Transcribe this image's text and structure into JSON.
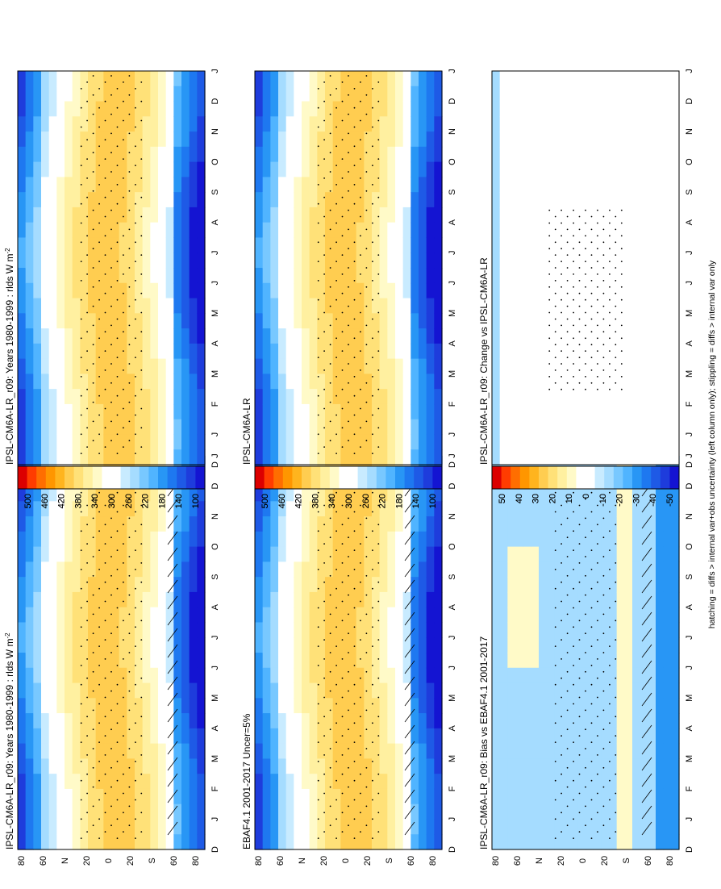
{
  "figure": {
    "footer": "hatching = diffs > internal var+obs uncertainty (left column only); stippling = diffs > internal var only"
  },
  "chart_data": [
    {
      "type": "heatmap",
      "id": "p_left_top",
      "title_main": "IPSL-CM6A-LR_r09: Years 1980-1999 : rlds W m",
      "title_sup": "-2",
      "x_ticks": [
        "D",
        "J",
        "F",
        "M",
        "A",
        "M",
        "J",
        "J",
        "A",
        "S",
        "O",
        "N",
        "D",
        "J"
      ],
      "y_ticks": [
        "80",
        "60",
        "N",
        "20",
        "0",
        "20",
        "S",
        "60",
        "80"
      ],
      "colorbar_labels": [
        "500",
        "460",
        "420",
        "380",
        "340",
        "300",
        "260",
        "220",
        "180",
        "140",
        "100"
      ],
      "field": "absolute",
      "hatching": true,
      "stippling": true
    },
    {
      "type": "heatmap",
      "id": "p_right_top",
      "title_main": "IPSL-CM6A-LR_r09: Years 1980-1999 : rlds W m",
      "title_sup": "-2",
      "x_ticks": [
        "D",
        "J",
        "F",
        "M",
        "A",
        "M",
        "J",
        "J",
        "A",
        "S",
        "O",
        "N",
        "D",
        "J"
      ],
      "y_ticks": [
        "80",
        "60",
        "N",
        "20",
        "0",
        "20",
        "S",
        "60",
        "80"
      ],
      "colorbar_labels": [
        "500",
        "460",
        "420",
        "380",
        "340",
        "300",
        "260",
        "220",
        "180",
        "140",
        "100"
      ],
      "field": "absolute",
      "hatching": false,
      "stippling": true
    },
    {
      "type": "heatmap",
      "id": "p_left_mid",
      "title_main": "EBAF4.1 2001-2017 Uncer=5%",
      "title_sup": "",
      "x_ticks": [
        "D",
        "J",
        "F",
        "M",
        "A",
        "M",
        "J",
        "J",
        "A",
        "S",
        "O",
        "N",
        "D",
        "J"
      ],
      "y_ticks": [
        "80",
        "60",
        "N",
        "20",
        "0",
        "20",
        "S",
        "60",
        "80"
      ],
      "colorbar_labels": [
        "500",
        "460",
        "420",
        "380",
        "340",
        "300",
        "260",
        "220",
        "180",
        "140",
        "100"
      ],
      "field": "absolute",
      "hatching": true,
      "stippling": true
    },
    {
      "type": "heatmap",
      "id": "p_right_mid",
      "title_main": "IPSL-CM6A-LR",
      "title_sup": "",
      "x_ticks": [
        "D",
        "J",
        "F",
        "M",
        "A",
        "M",
        "J",
        "J",
        "A",
        "S",
        "O",
        "N",
        "D",
        "J"
      ],
      "y_ticks": [
        "80",
        "60",
        "N",
        "20",
        "0",
        "20",
        "S",
        "60",
        "80"
      ],
      "colorbar_labels": [
        "500",
        "460",
        "420",
        "380",
        "340",
        "300",
        "260",
        "220",
        "180",
        "140",
        "100"
      ],
      "field": "absolute",
      "hatching": false,
      "stippling": true
    },
    {
      "type": "heatmap",
      "id": "p_left_bot",
      "title_main": "IPSL-CM6A-LR_r09: Bias vs EBAF4.1 2001-2017",
      "title_sup": "",
      "x_ticks": [
        "D",
        "J",
        "F",
        "M",
        "A",
        "M",
        "J",
        "J",
        "A",
        "S",
        "O",
        "N",
        "D",
        "J"
      ],
      "y_ticks": [
        "80",
        "60",
        "N",
        "20",
        "0",
        "20",
        "S",
        "60",
        "80"
      ],
      "colorbar_labels": [
        "50",
        "40",
        "30",
        "20",
        "10",
        "0",
        "-10",
        "-20",
        "-30",
        "-40",
        "-50"
      ],
      "field": "bias",
      "hatching": true,
      "stippling": true
    },
    {
      "type": "heatmap",
      "id": "p_right_bot",
      "title_main": "IPSL-CM6A-LR_r09: Change vs IPSL-CM6A-LR",
      "title_sup": "",
      "x_ticks": [
        "D",
        "J",
        "F",
        "M",
        "A",
        "M",
        "J",
        "J",
        "A",
        "S",
        "O",
        "N",
        "D",
        "J"
      ],
      "y_ticks": [
        "80",
        "60",
        "N",
        "20",
        "0",
        "20",
        "S",
        "60",
        "80"
      ],
      "colorbar_labels": [
        "50",
        "40",
        "30",
        "20",
        "10",
        "0",
        "-10",
        "-20",
        "-30",
        "-40",
        "-50"
      ],
      "field": "change",
      "hatching": false,
      "stippling": true
    }
  ],
  "colors": {
    "ramp": [
      "#dc0000",
      "#ff3c00",
      "#ff6e00",
      "#ff9600",
      "#ffb41e",
      "#ffcd50",
      "#ffe178",
      "#fff0a0",
      "#fffac8",
      "#ffffff",
      "#ffffff",
      "#c8ebff",
      "#a5dcff",
      "#78c8ff",
      "#50b4ff",
      "#2896f5",
      "#1e78f0",
      "#1e5ae6",
      "#1e3cdc",
      "#1414d2"
    ]
  }
}
